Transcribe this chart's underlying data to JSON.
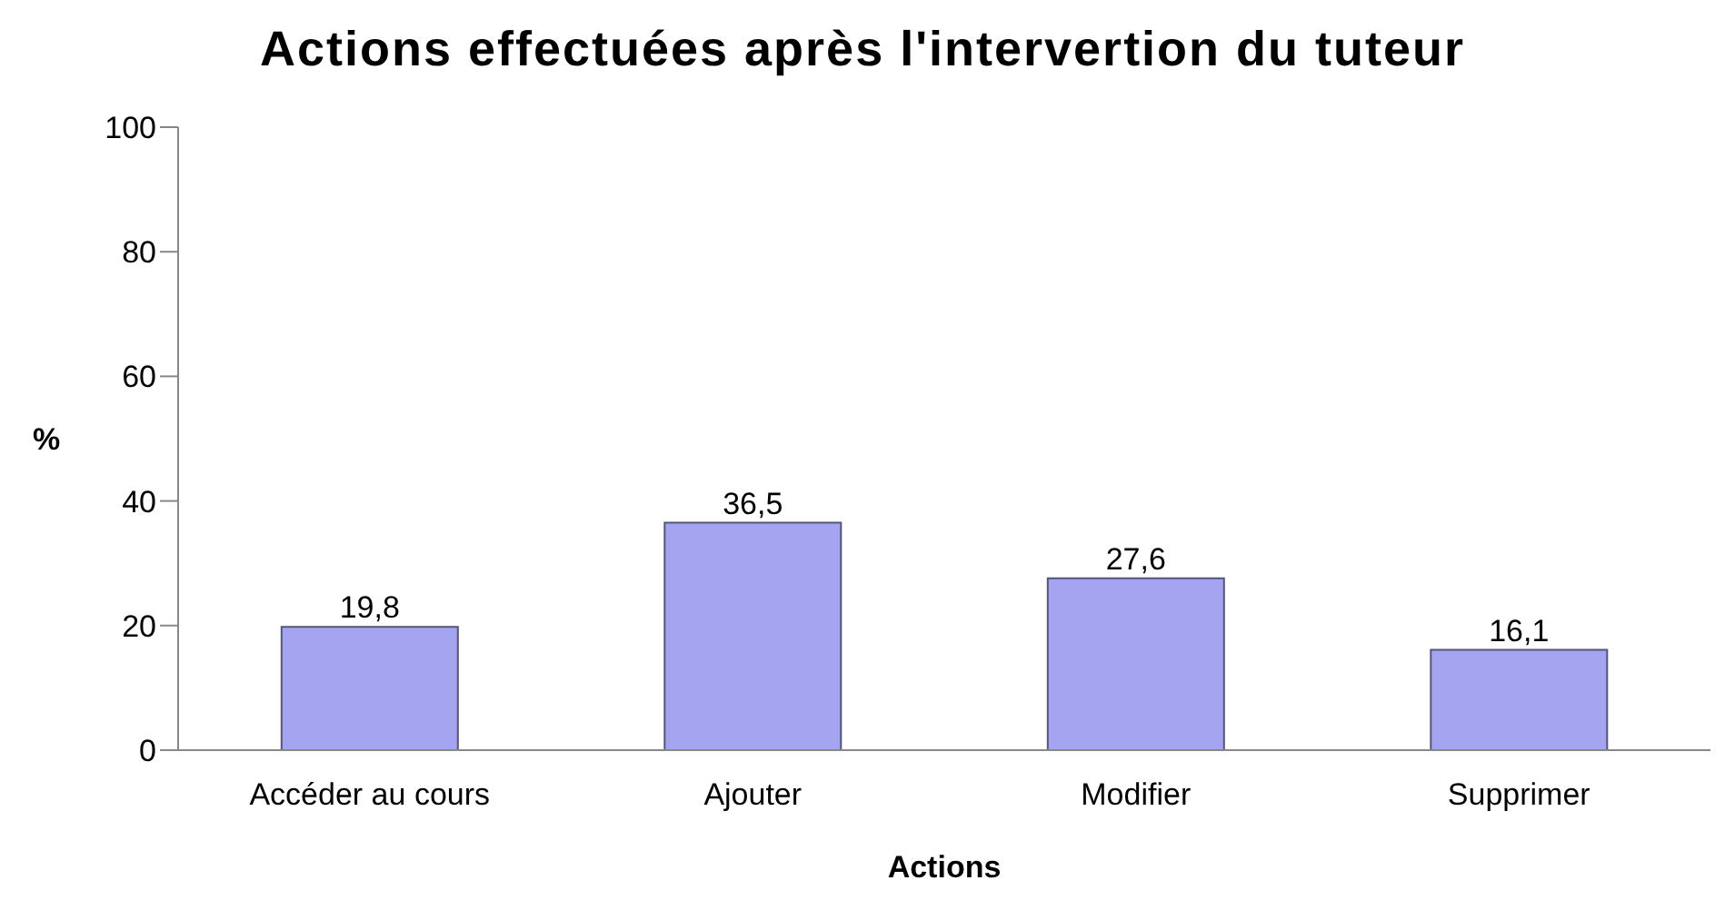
{
  "chart_data": {
    "type": "bar",
    "title": "Actions effectuées après l'intervertion du tuteur",
    "xlabel": "Actions",
    "ylabel": "%",
    "categories": [
      "Accéder au cours",
      "Ajouter",
      "Modifier",
      "Supprimer"
    ],
    "values": [
      19.8,
      36.5,
      27.6,
      16.1
    ],
    "value_labels": [
      "19,8",
      "36,5",
      "27,6",
      "16,1"
    ],
    "color": "#a4a4f0",
    "ylim": [
      0,
      100
    ],
    "yticks": [
      0,
      20,
      40,
      60,
      80,
      100
    ],
    "grid": false
  }
}
